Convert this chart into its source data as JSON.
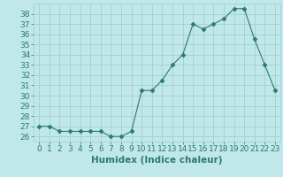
{
  "x": [
    0,
    1,
    2,
    3,
    4,
    5,
    6,
    7,
    8,
    9,
    10,
    11,
    12,
    13,
    14,
    15,
    16,
    17,
    18,
    19,
    20,
    21,
    22,
    23
  ],
  "y": [
    27,
    27,
    26.5,
    26.5,
    26.5,
    26.5,
    26.5,
    26,
    26,
    26.5,
    30.5,
    30.5,
    31.5,
    33,
    34,
    37,
    36.5,
    37,
    37.5,
    38.5,
    38.5,
    35.5,
    33,
    30.5
  ],
  "xlabel": "Humidex (Indice chaleur)",
  "xlim": [
    -0.5,
    23.5
  ],
  "ylim": [
    25.5,
    39
  ],
  "yticks": [
    26,
    27,
    28,
    29,
    30,
    31,
    32,
    33,
    34,
    35,
    36,
    37,
    38
  ],
  "xticks": [
    0,
    1,
    2,
    3,
    4,
    5,
    6,
    7,
    8,
    9,
    10,
    11,
    12,
    13,
    14,
    15,
    16,
    17,
    18,
    19,
    20,
    21,
    22,
    23
  ],
  "line_color": "#2d7a6e",
  "marker": "D",
  "marker_size": 2.5,
  "bg_color": "#c0e8e8",
  "grid_color": "#a0cccc",
  "tick_label_fontsize": 6.5,
  "xlabel_fontsize": 7.5
}
